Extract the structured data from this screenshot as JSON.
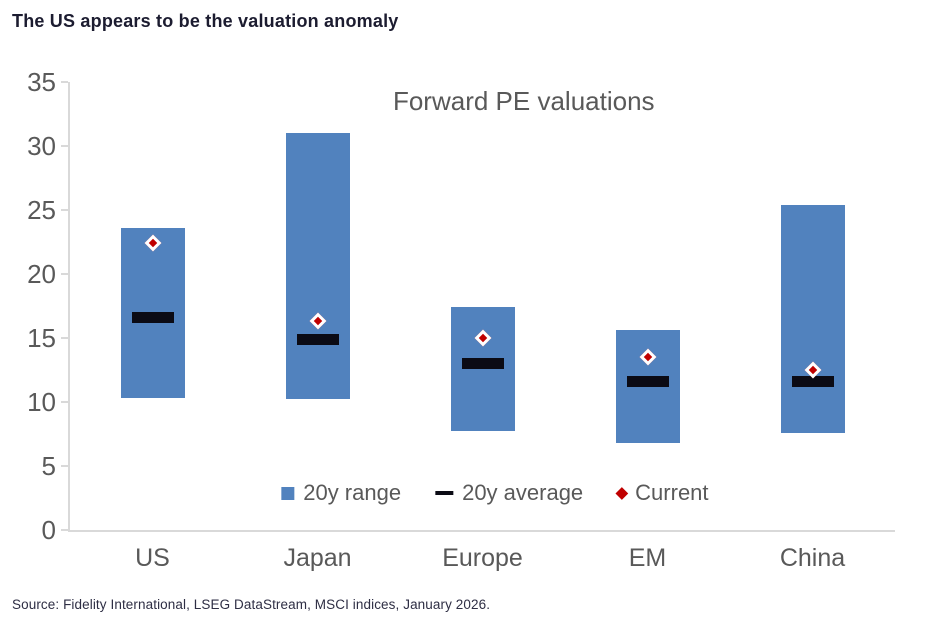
{
  "header": {
    "title": "The US appears to be the valuation anomaly"
  },
  "footer": {
    "source": "Source: Fidelity International, LSEG DataStream, MSCI indices, January 2026."
  },
  "chart_data": {
    "type": "bar",
    "subtype": "floating_range_bars_with_average_dash_and_current_marker",
    "title": "Forward PE valuations",
    "categories": [
      "US",
      "Japan",
      "Europe",
      "EM",
      "China"
    ],
    "series": [
      {
        "name": "20y range",
        "marker": "bar",
        "low": [
          10.3,
          10.2,
          7.7,
          6.8,
          7.6
        ],
        "high": [
          23.6,
          31.0,
          17.4,
          15.6,
          25.4
        ]
      },
      {
        "name": "20y average",
        "marker": "dash",
        "values": [
          16.6,
          14.9,
          13.0,
          11.6,
          11.6
        ]
      },
      {
        "name": "Current",
        "marker": "diamond",
        "values": [
          22.4,
          16.3,
          15.0,
          13.5,
          12.5
        ]
      }
    ],
    "xlabel": "",
    "ylabel": "",
    "ylim": [
      0,
      35
    ],
    "yticks": [
      0,
      5,
      10,
      15,
      20,
      25,
      30,
      35
    ],
    "grid": false,
    "legend_position": "bottom-center-inside",
    "colors": {
      "range_bar": "#5182BE",
      "average_dash": "#0B0B15",
      "current_marker": "#C00000",
      "axis_line": "#D9D9D9",
      "axis_text": "#595959",
      "title_text": "#1C1C30"
    }
  }
}
